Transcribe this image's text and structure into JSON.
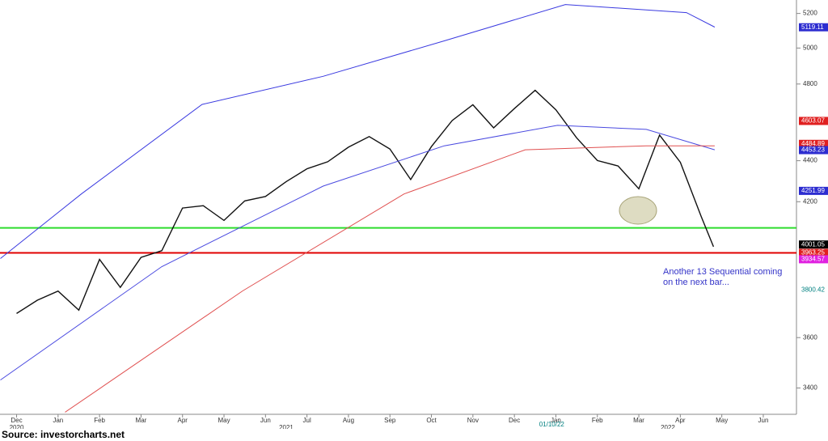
{
  "chart_data": {
    "type": "line",
    "log_y": true,
    "xlim": [
      -0.4,
      18.8
    ],
    "ylim": [
      3300,
      5280
    ],
    "yticks": [
      3400,
      3600,
      4200,
      4400,
      4800,
      5000,
      5200
    ],
    "xticks": [
      {
        "value": 0,
        "label": "Dec"
      },
      {
        "value": 1,
        "label": "Jan"
      },
      {
        "value": 2,
        "label": "Feb"
      },
      {
        "value": 3,
        "label": "Mar"
      },
      {
        "value": 4,
        "label": "Apr"
      },
      {
        "value": 5,
        "label": "May"
      },
      {
        "value": 6,
        "label": "Jun"
      },
      {
        "value": 7,
        "label": "Jul"
      },
      {
        "value": 8,
        "label": "Aug"
      },
      {
        "value": 9,
        "label": "Sep"
      },
      {
        "value": 10,
        "label": "Oct"
      },
      {
        "value": 11,
        "label": "Nov"
      },
      {
        "value": 12,
        "label": "Dec"
      },
      {
        "value": 13,
        "label": "Jan"
      },
      {
        "value": 14,
        "label": "Feb"
      },
      {
        "value": 15,
        "label": "Mar"
      },
      {
        "value": 16,
        "label": "Apr"
      },
      {
        "value": 17,
        "label": "May"
      },
      {
        "value": 18,
        "label": "Jun"
      }
    ],
    "x_year_labels": [
      {
        "value": 0,
        "label": "2020"
      },
      {
        "value": 6.5,
        "label": "2021"
      },
      {
        "value": 15.7,
        "label": "2022"
      }
    ],
    "date_marker": {
      "value": 12.9,
      "label": "01/10/22"
    },
    "series": [
      {
        "color": "#111111",
        "x": [
          0,
          0.5,
          1,
          1.5,
          2,
          2.5,
          3,
          3.5,
          4,
          4.5,
          5,
          5.5,
          6,
          6.5,
          7,
          7.5,
          8,
          8.5,
          9,
          9.5,
          10,
          10.5,
          11,
          11.5,
          12,
          12.5,
          13,
          13.5,
          14,
          14.5,
          15,
          15.5,
          16,
          16.5,
          16.8
        ],
        "values": [
          3700,
          3756,
          3795,
          3714,
          3934,
          3811,
          3943,
          3973,
          4170,
          4181,
          4112,
          4204,
          4225,
          4297,
          4360,
          4395,
          4468,
          4522,
          4459,
          4307,
          4471,
          4605,
          4688,
          4567,
          4668,
          4766,
          4662,
          4516,
          4401,
          4374,
          4262,
          4530,
          4392,
          4132,
          3991
        ]
      },
      {
        "color": "#3a3ae0",
        "x": [
          -0.39,
          1.56,
          4.47,
          7.39,
          10.31,
          13.23,
          16.15,
          16.83
        ],
        "values": [
          3938,
          4237,
          4690,
          4842,
          5041,
          5253,
          5205,
          5120
        ]
      },
      {
        "color": "#4a4ae0",
        "x": [
          -0.39,
          3.5,
          7.39,
          10.31,
          13.04,
          15.18,
          16.83
        ],
        "values": [
          3431,
          3902,
          4275,
          4475,
          4580,
          4559,
          4455
        ]
      },
      {
        "color": "#e05050",
        "x": [
          1.17,
          5.45,
          9.34,
          12.26,
          15.18,
          16.83
        ],
        "values": [
          3308,
          3796,
          4237,
          4455,
          4475,
          4475
        ]
      }
    ],
    "hlines": [
      {
        "value": 4077,
        "color": "#2edc2e"
      },
      {
        "value": 3963.25,
        "color": "#e00000"
      }
    ],
    "price_labels": [
      {
        "value": 5119.11,
        "color": "#2d2dd0",
        "text_color": "#ffffff"
      },
      {
        "value": 4603.07,
        "color": "#e02020",
        "text_color": "#ffffff"
      },
      {
        "value": 4484.89,
        "color": "#e02020",
        "text_color": "#ffffff"
      },
      {
        "value": 4453.23,
        "color": "#2d2dd0",
        "text_color": "#ffffff"
      },
      {
        "value": 4251.99,
        "color": "#2d2dd0",
        "text_color": "#ffffff"
      },
      {
        "value": 4001.05,
        "color": "#000000",
        "text_color": "#ffffff"
      },
      {
        "value": 3963.25,
        "color": "#e02020",
        "text_color": "#ffffff"
      },
      {
        "value": 3934.57,
        "color": "#e020e0",
        "text_color": "#ffffff"
      },
      {
        "value": 3800.42,
        "color": "#ffffff",
        "text_color": "#008080"
      }
    ],
    "annotation": "Another 13 Sequential coming on the next bar..."
  },
  "source": "Source: investorcharts.net"
}
